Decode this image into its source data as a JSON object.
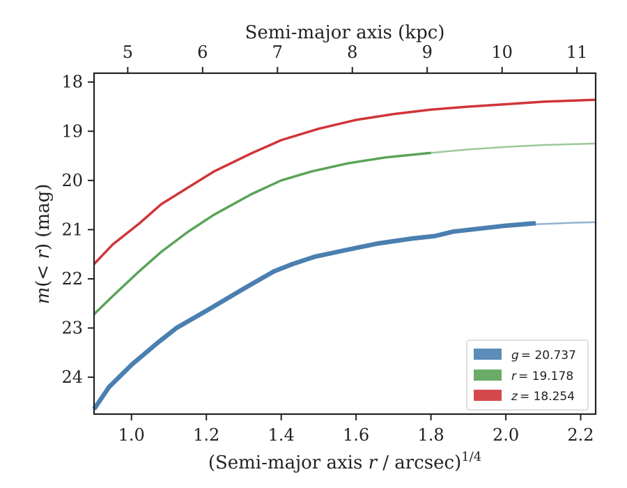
{
  "chart_data": {
    "type": "line",
    "xlabel": "(Semi-major axis r / arcsec)^1/4",
    "xlabel_parts": {
      "pre": "(Semi-major axis ",
      "var": "r",
      "post": " / arcsec)",
      "sup": "1/4"
    },
    "ylabel": "m(< r) (mag)",
    "ylabel_parts": {
      "func": "m",
      "open": "(",
      "lt": "<",
      "var": "r",
      "close": ")",
      "unit": " (mag)"
    },
    "top_xlabel": "Semi-major axis (kpc)",
    "xlim": [
      0.9,
      2.24
    ],
    "ylim": [
      24.75,
      17.82
    ],
    "x_ticks": [
      1.0,
      1.2,
      1.4,
      1.6,
      1.8,
      2.0,
      2.2
    ],
    "x_tick_labels": [
      "1.0",
      "1.2",
      "1.4",
      "1.6",
      "1.8",
      "2.0",
      "2.2"
    ],
    "y_ticks": [
      18,
      19,
      20,
      21,
      22,
      23,
      24
    ],
    "y_tick_labels": [
      "18",
      "19",
      "20",
      "21",
      "22",
      "23",
      "24"
    ],
    "top_ticks": [
      5,
      6,
      7,
      8,
      9,
      10,
      11
    ],
    "top_tick_labels": [
      "5",
      "6",
      "7",
      "8",
      "9",
      "10",
      "11"
    ],
    "top_tick_x_positions": [
      0.99,
      1.19,
      1.39,
      1.59,
      1.79,
      1.99,
      2.19
    ],
    "legend_placement": "lower-right",
    "grid": false,
    "series": [
      {
        "name": "g = 20.737",
        "legend_var": "g",
        "legend_value": "= 20.737",
        "color": "#4a7fb0",
        "width": 6.5,
        "x": [
          0.9,
          0.94,
          1.0,
          1.07,
          1.12,
          1.2,
          1.3,
          1.38,
          1.43,
          1.49,
          1.57,
          1.66,
          1.75,
          1.81,
          1.86,
          1.94,
          2.0,
          2.08
        ],
        "y": [
          24.65,
          24.2,
          23.75,
          23.3,
          23.0,
          22.65,
          22.2,
          21.85,
          21.7,
          21.55,
          21.42,
          21.28,
          21.18,
          21.13,
          21.04,
          20.97,
          20.92,
          20.87
        ],
        "ext_x": [
          2.08,
          2.12,
          2.18,
          2.24
        ],
        "ext_y": [
          20.89,
          20.88,
          20.86,
          20.85
        ]
      },
      {
        "name": "r = 19.178",
        "legend_var": "r",
        "legend_value": "= 19.178",
        "color": "#5aa357",
        "width": 3.5,
        "x": [
          0.9,
          0.95,
          1.02,
          1.08,
          1.15,
          1.22,
          1.32,
          1.4,
          1.48,
          1.58,
          1.68,
          1.8
        ],
        "y": [
          22.72,
          22.35,
          21.85,
          21.45,
          21.05,
          20.7,
          20.28,
          20.0,
          19.82,
          19.65,
          19.53,
          19.44
        ],
        "ext_x": [
          1.8,
          1.9,
          2.0,
          2.1,
          2.24
        ],
        "ext_y": [
          19.44,
          19.37,
          19.32,
          19.28,
          19.25
        ]
      },
      {
        "name": "z = 18.254",
        "legend_var": "z",
        "legend_value": "= 18.254",
        "color": "#d03538",
        "width": 3.5,
        "x": [
          0.9,
          0.95,
          1.02,
          1.08,
          1.15,
          1.22,
          1.32,
          1.4,
          1.5,
          1.6,
          1.7,
          1.8,
          1.9,
          2.0,
          2.1,
          2.24
        ],
        "y": [
          21.7,
          21.3,
          20.88,
          20.48,
          20.15,
          19.82,
          19.45,
          19.18,
          18.95,
          18.77,
          18.65,
          18.56,
          18.5,
          18.45,
          18.4,
          18.36
        ]
      }
    ]
  }
}
